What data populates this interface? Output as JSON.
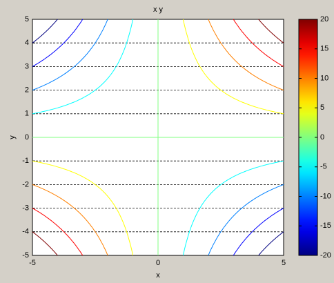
{
  "chart_data": {
    "type": "contour",
    "title": "x y",
    "xlabel": "x",
    "ylabel": "y",
    "function": "x*y",
    "colormap": "jet",
    "levels": [
      -20,
      -15,
      -10,
      -5,
      0,
      5,
      10,
      15,
      20
    ],
    "xlim": [
      -5,
      5
    ],
    "ylim": [
      -5,
      5
    ],
    "xticks": [
      -5,
      0,
      5
    ],
    "yticks": [
      -5,
      -4,
      -3,
      -2,
      -1,
      0,
      1,
      2,
      3,
      4,
      5
    ],
    "ygrid": true,
    "colorbar": {
      "clim": [
        -20,
        20
      ],
      "ticks": [
        -20,
        -15,
        -10,
        -5,
        0,
        5,
        10,
        15,
        20
      ]
    }
  }
}
